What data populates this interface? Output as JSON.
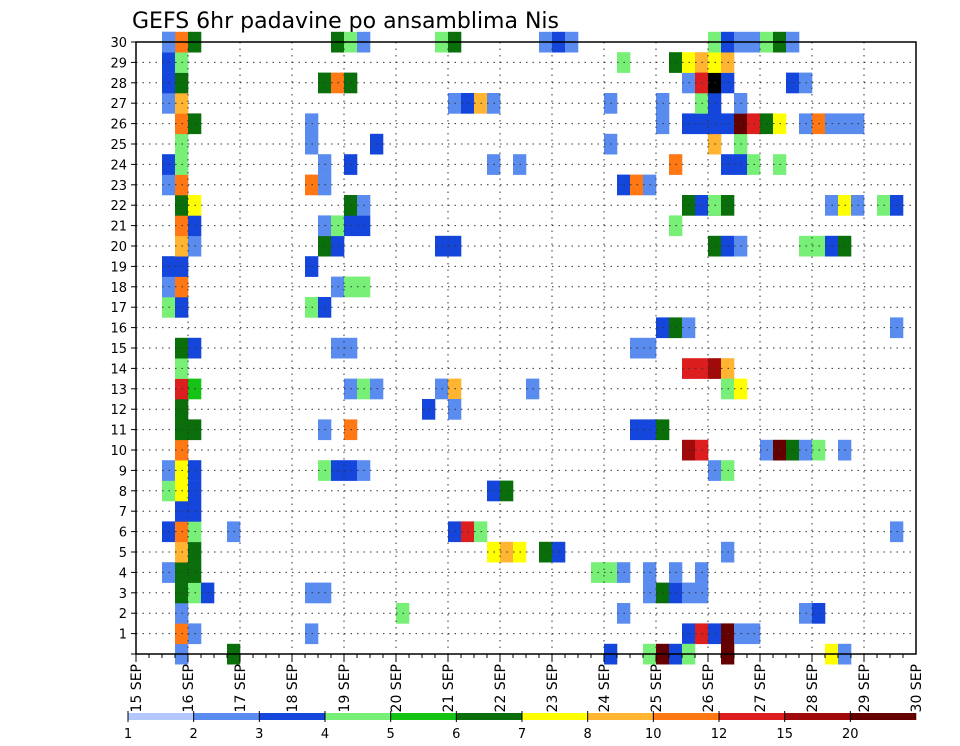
{
  "chart_data": {
    "type": "heatmap",
    "title": "GEFS 6hr padavine po ansamblima Nis",
    "xlabel": "",
    "ylabel": "",
    "x_tick_labels": [
      "15 SEP",
      "16 SEP",
      "17 SEP",
      "18 SEP",
      "19 SEP",
      "20 SEP",
      "21 SEP",
      "22 SEP",
      "23 SEP",
      "24 SEP",
      "25 SEP",
      "26 SEP",
      "27 SEP",
      "28 SEP",
      "29 SEP",
      "30 SEP"
    ],
    "x_range_days": [
      0,
      15
    ],
    "y_tick_labels": [
      "1",
      "2",
      "3",
      "4",
      "5",
      "6",
      "7",
      "8",
      "9",
      "10",
      "11",
      "12",
      "13",
      "14",
      "15",
      "16",
      "17",
      "18",
      "19",
      "20",
      "21",
      "22",
      "23",
      "24",
      "25",
      "26",
      "27",
      "28",
      "29",
      "30"
    ],
    "y_range": [
      0,
      30
    ],
    "grid": true,
    "colorbar": {
      "labels": [
        "1",
        "2",
        "3",
        "4",
        "5",
        "6",
        "7",
        "8",
        "10",
        "12",
        "15",
        "20"
      ],
      "colors": [
        "#b4c8ff",
        "#5a8cf0",
        "#1446dc",
        "#78f078",
        "#14c314",
        "#0a6e0a",
        "#ffff00",
        "#ffb432",
        "#ff7814",
        "#dc1e1e",
        "#a00a0a",
        "#640000"
      ]
    },
    "cells": [
      [
        0.75,
        0,
        1
      ],
      [
        0.75,
        1,
        8
      ],
      [
        1,
        1,
        1
      ],
      [
        1.75,
        0,
        5
      ],
      [
        0.75,
        2,
        1
      ],
      [
        0.75,
        3,
        5
      ],
      [
        1,
        3,
        3
      ],
      [
        1.25,
        3,
        2
      ],
      [
        0.5,
        4,
        1
      ],
      [
        0.75,
        4,
        5
      ],
      [
        1,
        4,
        5
      ],
      [
        0.75,
        5,
        7
      ],
      [
        1,
        5,
        5
      ],
      [
        0.5,
        6,
        2
      ],
      [
        0.75,
        6,
        8
      ],
      [
        1,
        6,
        3
      ],
      [
        0.75,
        7,
        2
      ],
      [
        1,
        7,
        2
      ],
      [
        0.5,
        8,
        3
      ],
      [
        0.75,
        8,
        6
      ],
      [
        1,
        8,
        2
      ],
      [
        0.5,
        9,
        1
      ],
      [
        0.75,
        9,
        6
      ],
      [
        1,
        9,
        2
      ],
      [
        0.75,
        10,
        8
      ],
      [
        0.75,
        11,
        5
      ],
      [
        1,
        11,
        5
      ],
      [
        0.75,
        12,
        5
      ],
      [
        0.75,
        13,
        9
      ],
      [
        1,
        13,
        4
      ],
      [
        0.75,
        14,
        3
      ],
      [
        0.75,
        15,
        5
      ],
      [
        1,
        15,
        2
      ],
      [
        0.5,
        17,
        3
      ],
      [
        0.75,
        17,
        2
      ],
      [
        0.5,
        18,
        1
      ],
      [
        0.75,
        18,
        8
      ],
      [
        0.5,
        19,
        2
      ],
      [
        0.75,
        19,
        2
      ],
      [
        0.75,
        20,
        7
      ],
      [
        1,
        20,
        1
      ],
      [
        0.75,
        21,
        8
      ],
      [
        1,
        21,
        2
      ],
      [
        0.75,
        22,
        5
      ],
      [
        1,
        22,
        6
      ],
      [
        0.5,
        23,
        1
      ],
      [
        0.75,
        23,
        8
      ],
      [
        0.5,
        24,
        2
      ],
      [
        0.75,
        24,
        3
      ],
      [
        0.75,
        25,
        3
      ],
      [
        0.75,
        26,
        8
      ],
      [
        1,
        26,
        5
      ],
      [
        0.5,
        27,
        1
      ],
      [
        0.75,
        27,
        7
      ],
      [
        0.5,
        28,
        2
      ],
      [
        0.75,
        28,
        5
      ],
      [
        0.5,
        29,
        2
      ],
      [
        0.75,
        29,
        3
      ],
      [
        0.5,
        30,
        1
      ],
      [
        0.75,
        30,
        8
      ],
      [
        1,
        30,
        5
      ],
      [
        1.75,
        6,
        1
      ],
      [
        3.25,
        1,
        1
      ],
      [
        3.25,
        3,
        1
      ],
      [
        3.5,
        3,
        1
      ],
      [
        3.5,
        9,
        3
      ],
      [
        3.75,
        9,
        2
      ],
      [
        4,
        9,
        2
      ],
      [
        4.25,
        9,
        1
      ],
      [
        3.5,
        11,
        1
      ],
      [
        4,
        11,
        8
      ],
      [
        4,
        13,
        1
      ],
      [
        4.25,
        13,
        3
      ],
      [
        4.5,
        13,
        1
      ],
      [
        3.75,
        15,
        1
      ],
      [
        4,
        15,
        1
      ],
      [
        3.25,
        17,
        3
      ],
      [
        3.5,
        17,
        2
      ],
      [
        3.75,
        18,
        1
      ],
      [
        4,
        18,
        3
      ],
      [
        4.25,
        18,
        3
      ],
      [
        3.25,
        19,
        2
      ],
      [
        3.5,
        20,
        5
      ],
      [
        3.75,
        20,
        2
      ],
      [
        3.5,
        21,
        1
      ],
      [
        3.75,
        21,
        3
      ],
      [
        4,
        21,
        2
      ],
      [
        4.25,
        21,
        2
      ],
      [
        4,
        22,
        5
      ],
      [
        4.25,
        22,
        1
      ],
      [
        3.25,
        23,
        8
      ],
      [
        3.5,
        23,
        1
      ],
      [
        3.5,
        24,
        1
      ],
      [
        4,
        24,
        2
      ],
      [
        3.25,
        25,
        1
      ],
      [
        4.5,
        25,
        2
      ],
      [
        3.25,
        26,
        1
      ],
      [
        3.5,
        28,
        5
      ],
      [
        3.75,
        28,
        8
      ],
      [
        4,
        28,
        5
      ],
      [
        3.75,
        30,
        5
      ],
      [
        4,
        30,
        3
      ],
      [
        4.25,
        30,
        1
      ],
      [
        5,
        2,
        3
      ],
      [
        5.5,
        12,
        2
      ],
      [
        6,
        6,
        2
      ],
      [
        6.25,
        6,
        9
      ],
      [
        6.5,
        6,
        3
      ],
      [
        5.75,
        13,
        1
      ],
      [
        6,
        13,
        7
      ],
      [
        6,
        12,
        1
      ],
      [
        5.75,
        20,
        2
      ],
      [
        6,
        20,
        2
      ],
      [
        6,
        27,
        1
      ],
      [
        6.25,
        27,
        2
      ],
      [
        6.5,
        27,
        7
      ],
      [
        6.75,
        27,
        1
      ],
      [
        5.75,
        30,
        3
      ],
      [
        6,
        30,
        5
      ],
      [
        6.75,
        5,
        6
      ],
      [
        7,
        5,
        7
      ],
      [
        7.25,
        5,
        6
      ],
      [
        6.75,
        8,
        2
      ],
      [
        7,
        8,
        5
      ],
      [
        6.75,
        24,
        1
      ],
      [
        7.25,
        24,
        1
      ],
      [
        7.5,
        13,
        1
      ],
      [
        7.75,
        5,
        5
      ],
      [
        8,
        5,
        2
      ],
      [
        7.75,
        30,
        1
      ],
      [
        8,
        30,
        2
      ],
      [
        8.25,
        30,
        1
      ],
      [
        8.75,
        4,
        3
      ],
      [
        9,
        4,
        3
      ],
      [
        9.25,
        4,
        1
      ],
      [
        9.25,
        2,
        1
      ],
      [
        9,
        0,
        2
      ],
      [
        9.25,
        23,
        2
      ],
      [
        9.5,
        23,
        8
      ],
      [
        9.75,
        23,
        1
      ],
      [
        9,
        25,
        1
      ],
      [
        9,
        27,
        1
      ],
      [
        9.25,
        29,
        3
      ],
      [
        9.75,
        0,
        3
      ],
      [
        10,
        0,
        11
      ],
      [
        9.75,
        3,
        1
      ],
      [
        10,
        3,
        5
      ],
      [
        10.25,
        3,
        2
      ],
      [
        9.75,
        4,
        1
      ],
      [
        10.25,
        4,
        1
      ],
      [
        9.5,
        11,
        2
      ],
      [
        9.75,
        11,
        2
      ],
      [
        10,
        11,
        5
      ],
      [
        9.5,
        15,
        1
      ],
      [
        9.75,
        15,
        1
      ],
      [
        10,
        16,
        2
      ],
      [
        10.25,
        16,
        5
      ],
      [
        10.5,
        16,
        1
      ],
      [
        10.25,
        21,
        3
      ],
      [
        10.5,
        22,
        5
      ],
      [
        10.75,
        22,
        2
      ],
      [
        11,
        22,
        5
      ],
      [
        10.25,
        24,
        8
      ],
      [
        10,
        26,
        1
      ],
      [
        10.5,
        26,
        2
      ],
      [
        10,
        27,
        1
      ],
      [
        10.5,
        28,
        1
      ],
      [
        10.25,
        29,
        5
      ],
      [
        10.5,
        29,
        6
      ],
      [
        10.75,
        29,
        7
      ],
      [
        10.5,
        1,
        2
      ],
      [
        10.75,
        1,
        9
      ],
      [
        11,
        1,
        2
      ],
      [
        11.25,
        1,
        11
      ],
      [
        11.5,
        1,
        1
      ],
      [
        11.75,
        1,
        1
      ],
      [
        10.5,
        10,
        10
      ],
      [
        10.75,
        10,
        9
      ],
      [
        10.5,
        14,
        9
      ],
      [
        10.75,
        14,
        9
      ],
      [
        11,
        14,
        10
      ],
      [
        11.25,
        14,
        7
      ],
      [
        11.25,
        13,
        3
      ],
      [
        11.5,
        13,
        6
      ],
      [
        11,
        9,
        1
      ],
      [
        11.25,
        9,
        3
      ],
      [
        10.5,
        3,
        1
      ],
      [
        10.75,
        3,
        1
      ],
      [
        10.75,
        4,
        1
      ],
      [
        11.25,
        5,
        1
      ],
      [
        11,
        20,
        5
      ],
      [
        11.25,
        20,
        2
      ],
      [
        11.5,
        20,
        1
      ],
      [
        11,
        22,
        3
      ],
      [
        11.25,
        22,
        5
      ],
      [
        11,
        25,
        7
      ],
      [
        11.5,
        25,
        3
      ],
      [
        11.25,
        24,
        2
      ],
      [
        11.5,
        24,
        2
      ],
      [
        11.75,
        24,
        3
      ],
      [
        10.75,
        26,
        2
      ],
      [
        11,
        26,
        2
      ],
      [
        11.25,
        26,
        2
      ],
      [
        11.5,
        26,
        11
      ],
      [
        11.75,
        26,
        9
      ],
      [
        12,
        26,
        5
      ],
      [
        12.25,
        26,
        6
      ],
      [
        10.75,
        27,
        3
      ],
      [
        11,
        27,
        2
      ],
      [
        11.5,
        27,
        1
      ],
      [
        10.75,
        28,
        9
      ],
      [
        11,
        28,
        12
      ],
      [
        11.25,
        28,
        2
      ],
      [
        11,
        29,
        6
      ],
      [
        11.25,
        29,
        7
      ],
      [
        11,
        30,
        3
      ],
      [
        11.25,
        30,
        2
      ],
      [
        11.5,
        30,
        1
      ],
      [
        11.75,
        30,
        1
      ],
      [
        12,
        30,
        3
      ],
      [
        12.25,
        30,
        5
      ],
      [
        12.5,
        30,
        1
      ],
      [
        10.25,
        0,
        2
      ],
      [
        10.5,
        0,
        3
      ],
      [
        11.25,
        0,
        11
      ],
      [
        12,
        10,
        1
      ],
      [
        12.25,
        10,
        11
      ],
      [
        12.5,
        10,
        5
      ],
      [
        12.75,
        10,
        1
      ],
      [
        13,
        10,
        3
      ],
      [
        13.5,
        10,
        1
      ],
      [
        12.75,
        2,
        1
      ],
      [
        13,
        2,
        2
      ],
      [
        12.75,
        20,
        3
      ],
      [
        13,
        20,
        3
      ],
      [
        13.25,
        20,
        2
      ],
      [
        13.5,
        20,
        5
      ],
      [
        12.75,
        26,
        1
      ],
      [
        13,
        26,
        8
      ],
      [
        13.25,
        26,
        1
      ],
      [
        13.5,
        26,
        1
      ],
      [
        13.75,
        26,
        1
      ],
      [
        12.5,
        28,
        2
      ],
      [
        12.75,
        28,
        1
      ],
      [
        12.25,
        24,
        3
      ],
      [
        13.25,
        22,
        1
      ],
      [
        13.5,
        22,
        6
      ],
      [
        13.75,
        22,
        1
      ],
      [
        14.25,
        22,
        3
      ],
      [
        14.5,
        22,
        2
      ],
      [
        13.25,
        0,
        6
      ],
      [
        13.5,
        0,
        1
      ],
      [
        14.5,
        6,
        1
      ],
      [
        14.5,
        16,
        1
      ],
      [
        0.5,
        30,
        1
      ]
    ]
  }
}
